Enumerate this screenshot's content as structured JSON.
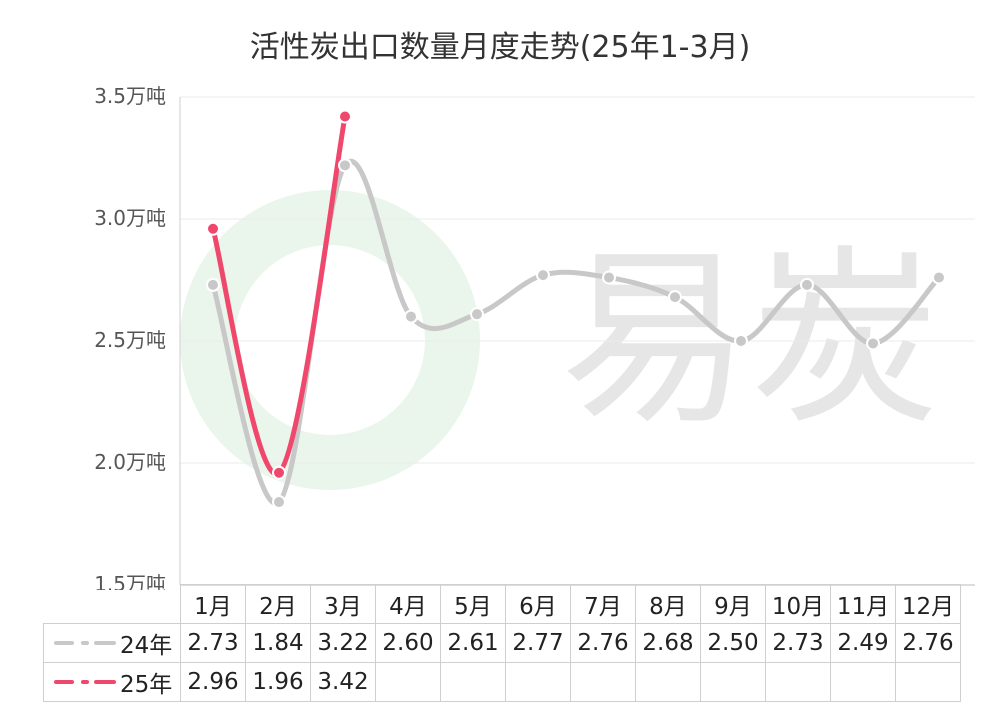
{
  "chart_data": {
    "type": "line",
    "title": "活性炭出口数量月度走势(25年1-3月)",
    "categories": [
      "1月",
      "2月",
      "3月",
      "4月",
      "5月",
      "6月",
      "7月",
      "8月",
      "9月",
      "10月",
      "11月",
      "12月"
    ],
    "series": [
      {
        "name": "24年",
        "values": [
          2.73,
          1.84,
          3.22,
          2.6,
          2.61,
          2.77,
          2.76,
          2.68,
          2.5,
          2.73,
          2.49,
          2.76
        ],
        "color": "#c8c8c8"
      },
      {
        "name": "25年",
        "values": [
          2.96,
          1.96,
          3.42,
          null,
          null,
          null,
          null,
          null,
          null,
          null,
          null,
          null
        ],
        "color": "#f0486c"
      }
    ],
    "ylim": [
      1.5,
      3.5
    ],
    "yticks": [
      1.5,
      2.0,
      2.5,
      3.0,
      3.5
    ],
    "ytick_labels": [
      "1.5万吨",
      "2.0万吨",
      "2.5万吨",
      "3.0万吨",
      "3.5万吨"
    ],
    "xlabel": "",
    "ylabel": "",
    "grid": true,
    "legend_position": "table-left",
    "watermark": "易炭"
  }
}
